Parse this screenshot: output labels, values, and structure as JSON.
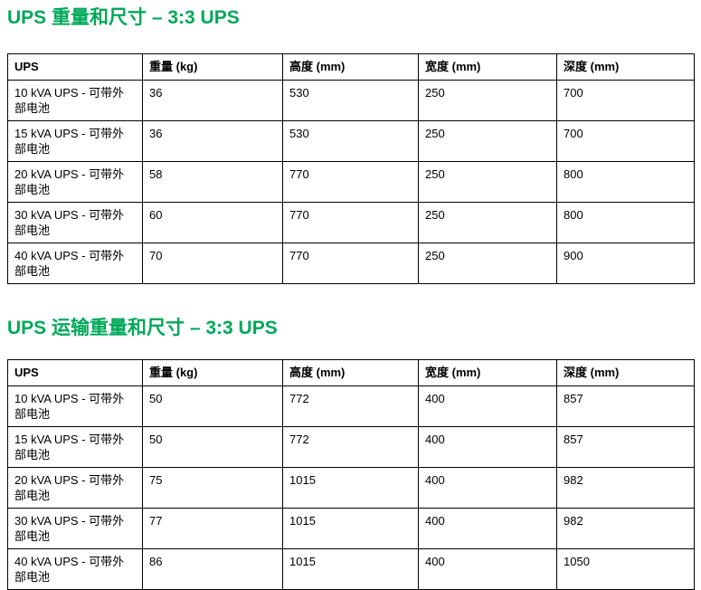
{
  "page": {
    "accent_color": "#00a859"
  },
  "section1": {
    "title": "UPS 重量和尺寸 – 3:3 UPS",
    "table": {
      "headers": [
        "UPS",
        "重量 (kg)",
        "高度 (mm)",
        "宽度 (mm)",
        "深度 (mm)"
      ],
      "rows": [
        [
          "10 kVA UPS - 可带外部电池",
          "36",
          "530",
          "250",
          "700"
        ],
        [
          "15 kVA UPS - 可带外部电池",
          "36",
          "530",
          "250",
          "700"
        ],
        [
          "20 kVA UPS - 可带外部电池",
          "58",
          "770",
          "250",
          "800"
        ],
        [
          "30 kVA UPS - 可带外部电池",
          "60",
          "770",
          "250",
          "800"
        ],
        [
          "40 kVA UPS - 可带外部电池",
          "70",
          "770",
          "250",
          "900"
        ]
      ]
    }
  },
  "section2": {
    "title": "UPS 运输重量和尺寸 – 3:3 UPS",
    "table": {
      "headers": [
        "UPS",
        "重量 (kg)",
        "高度 (mm)",
        "宽度 (mm)",
        "深度 (mm)"
      ],
      "rows": [
        [
          "10 kVA UPS - 可带外部电池",
          "50",
          "772",
          "400",
          "857"
        ],
        [
          "15 kVA UPS - 可带外部电池",
          "50",
          "772",
          "400",
          "857"
        ],
        [
          "20 kVA UPS - 可带外部电池",
          "75",
          "1015",
          "400",
          "982"
        ],
        [
          "30 kVA UPS - 可带外部电池",
          "77",
          "1015",
          "400",
          "982"
        ],
        [
          "40 kVA UPS - 可带外部电池",
          "86",
          "1015",
          "400",
          "1050"
        ]
      ]
    }
  }
}
